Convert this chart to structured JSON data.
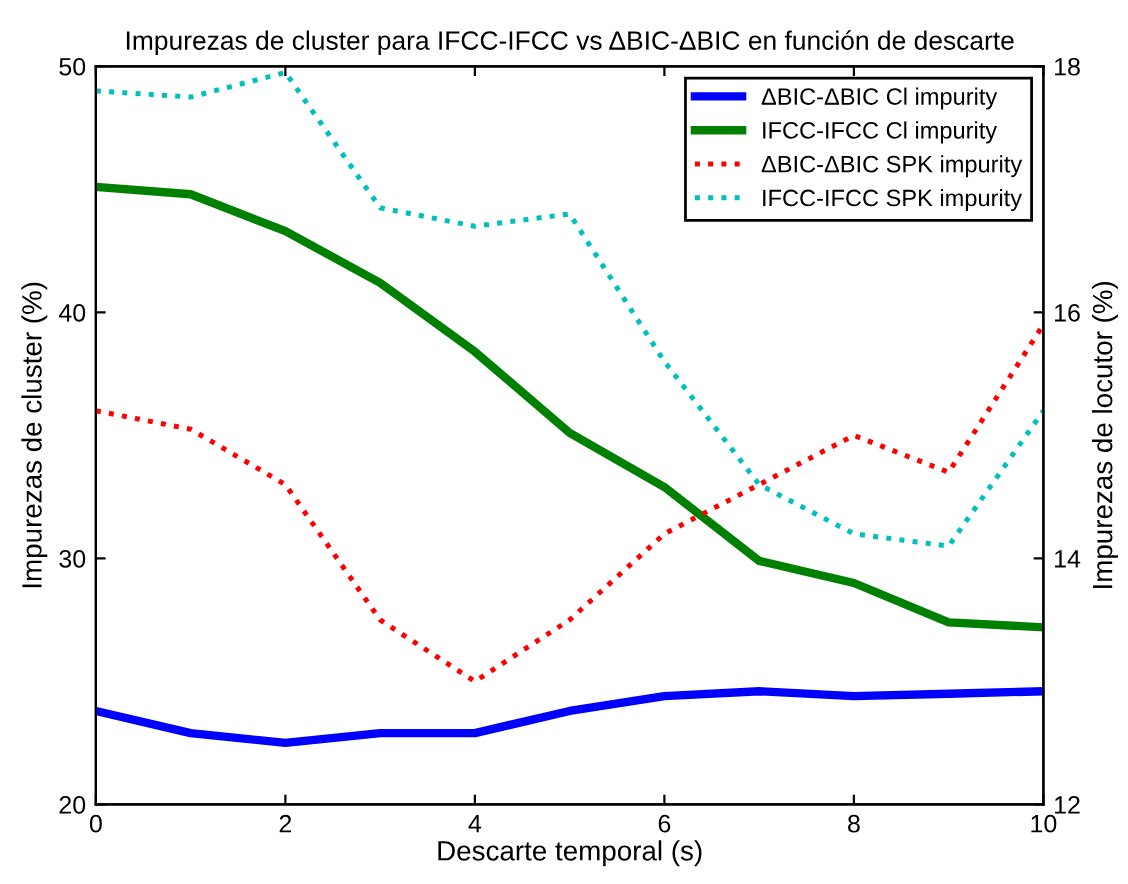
{
  "chart_data": {
    "type": "line",
    "title": "Impurezas de cluster para IFCC-IFCC vs ΔBIC-ΔBIC en función de descarte",
    "xlabel": "Descarte temporal (s)",
    "ylabel": "Impurezas de cluster (%)",
    "y2label": "Impurezas de locutor (%)",
    "x": [
      0,
      1,
      2,
      3,
      4,
      5,
      6,
      7,
      8,
      9,
      10
    ],
    "series": [
      {
        "name": "ΔBIC-ΔBIC Cl impurity",
        "color": "#0000ff",
        "line_style": "solid",
        "values": [
          23.8,
          22.9,
          22.5,
          22.9,
          22.9,
          23.8,
          24.4,
          24.6,
          24.4,
          24.5,
          24.6
        ]
      },
      {
        "name": "IFCC-IFCC Cl impurity",
        "color": "#008000",
        "line_style": "solid",
        "values": [
          45.1,
          44.8,
          43.3,
          41.2,
          38.4,
          35.1,
          32.9,
          29.9,
          29.0,
          27.4,
          27.2
        ]
      },
      {
        "name": "ΔBIC-ΔBIC SPK impurity",
        "color": "#ff0000",
        "line_style": "dotted",
        "axis": "y2",
        "values": [
          15.2,
          15.05,
          14.6,
          13.5,
          13.0,
          13.5,
          14.2,
          14.6,
          15.0,
          14.7,
          15.9
        ]
      },
      {
        "name": "IFCC-IFCC SPK impurity",
        "color": "#00bfbf",
        "line_style": "dotted",
        "axis": "y2",
        "values": [
          17.8,
          17.75,
          17.95,
          16.85,
          16.7,
          16.8,
          15.6,
          14.6,
          14.2,
          14.1,
          15.2
        ]
      }
    ],
    "xlim": [
      0,
      10
    ],
    "xticks": [
      0,
      2,
      4,
      6,
      8,
      10
    ],
    "ylim": [
      20,
      50
    ],
    "yticks": [
      20,
      30,
      40,
      50
    ],
    "y2lim": [
      12,
      18
    ],
    "y2ticks": [
      12,
      14,
      16,
      18
    ],
    "legend": "top right",
    "grid": false,
    "marker": "none"
  }
}
